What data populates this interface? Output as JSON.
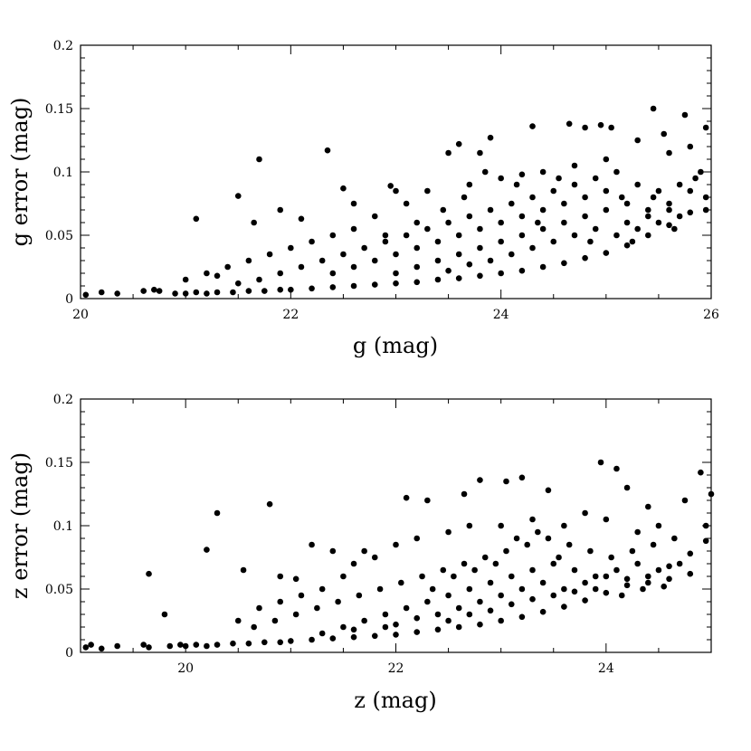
{
  "chart_data": [
    {
      "type": "scatter",
      "xlabel": "g (mag)",
      "ylabel": "g error (mag)",
      "xlim": [
        20,
        26
      ],
      "ylim": [
        0,
        0.2
      ],
      "xticks": [
        20,
        22,
        24,
        26
      ],
      "xtick_labels": [
        "20",
        "22",
        "24",
        "26"
      ],
      "yticks": [
        0,
        0.05,
        0.1,
        0.15,
        0.2
      ],
      "ytick_labels": [
        "0",
        "0.05",
        "0.1",
        "0.15",
        "0.2"
      ],
      "grid": false,
      "marker_color": "#000000",
      "points": [
        [
          20.05,
          0.003
        ],
        [
          20.2,
          0.005
        ],
        [
          20.35,
          0.004
        ],
        [
          20.6,
          0.006
        ],
        [
          20.7,
          0.007
        ],
        [
          20.75,
          0.006
        ],
        [
          20.9,
          0.004
        ],
        [
          21.0,
          0.004
        ],
        [
          21.1,
          0.005
        ],
        [
          21.2,
          0.004
        ],
        [
          21.3,
          0.005
        ],
        [
          21.45,
          0.005
        ],
        [
          21.6,
          0.006
        ],
        [
          21.75,
          0.006
        ],
        [
          21.9,
          0.007
        ],
        [
          22.0,
          0.007
        ],
        [
          22.2,
          0.008
        ],
        [
          22.4,
          0.009
        ],
        [
          22.6,
          0.01
        ],
        [
          22.8,
          0.011
        ],
        [
          23.0,
          0.012
        ],
        [
          23.2,
          0.013
        ],
        [
          23.4,
          0.015
        ],
        [
          23.6,
          0.016
        ],
        [
          23.8,
          0.018
        ],
        [
          24.0,
          0.02
        ],
        [
          24.2,
          0.022
        ],
        [
          24.4,
          0.025
        ],
        [
          24.6,
          0.028
        ],
        [
          24.8,
          0.032
        ],
        [
          25.0,
          0.036
        ],
        [
          25.2,
          0.042
        ],
        [
          25.4,
          0.05
        ],
        [
          25.6,
          0.058
        ],
        [
          25.8,
          0.068
        ],
        [
          25.95,
          0.08
        ],
        [
          21.1,
          0.063
        ],
        [
          21.5,
          0.081
        ],
        [
          21.7,
          0.11
        ],
        [
          21.65,
          0.06
        ],
        [
          21.9,
          0.07
        ],
        [
          22.1,
          0.063
        ],
        [
          22.35,
          0.117
        ],
        [
          22.5,
          0.087
        ],
        [
          22.6,
          0.075
        ],
        [
          22.95,
          0.089
        ],
        [
          23.0,
          0.085
        ],
        [
          23.5,
          0.115
        ],
        [
          23.6,
          0.122
        ],
        [
          23.8,
          0.115
        ],
        [
          23.85,
          0.1
        ],
        [
          23.9,
          0.127
        ],
        [
          24.3,
          0.136
        ],
        [
          24.65,
          0.138
        ],
        [
          24.8,
          0.135
        ],
        [
          24.95,
          0.137
        ],
        [
          25.05,
          0.135
        ],
        [
          25.45,
          0.15
        ],
        [
          25.75,
          0.145
        ],
        [
          25.95,
          0.135
        ],
        [
          25.55,
          0.13
        ],
        [
          25.3,
          0.125
        ],
        [
          25.6,
          0.115
        ],
        [
          25.8,
          0.12
        ],
        [
          25.9,
          0.1
        ],
        [
          25.0,
          0.11
        ],
        [
          24.7,
          0.105
        ],
        [
          24.4,
          0.1
        ],
        [
          24.2,
          0.098
        ],
        [
          24.0,
          0.095
        ],
        [
          23.7,
          0.09
        ],
        [
          23.3,
          0.085
        ],
        [
          23.1,
          0.075
        ],
        [
          22.8,
          0.065
        ],
        [
          22.6,
          0.055
        ],
        [
          22.4,
          0.05
        ],
        [
          22.2,
          0.045
        ],
        [
          22.0,
          0.04
        ],
        [
          21.8,
          0.035
        ],
        [
          21.6,
          0.03
        ],
        [
          21.4,
          0.025
        ],
        [
          21.2,
          0.02
        ],
        [
          21.0,
          0.015
        ],
        [
          21.3,
          0.018
        ],
        [
          21.5,
          0.012
        ],
        [
          21.7,
          0.015
        ],
        [
          21.9,
          0.02
        ],
        [
          22.1,
          0.025
        ],
        [
          22.3,
          0.03
        ],
        [
          22.5,
          0.035
        ],
        [
          22.7,
          0.04
        ],
        [
          22.9,
          0.045
        ],
        [
          23.1,
          0.05
        ],
        [
          23.3,
          0.055
        ],
        [
          23.5,
          0.06
        ],
        [
          23.7,
          0.065
        ],
        [
          23.9,
          0.07
        ],
        [
          24.1,
          0.075
        ],
        [
          24.3,
          0.08
        ],
        [
          24.5,
          0.085
        ],
        [
          24.7,
          0.09
        ],
        [
          24.9,
          0.095
        ],
        [
          25.1,
          0.1
        ],
        [
          25.3,
          0.09
        ],
        [
          25.5,
          0.085
        ],
        [
          25.7,
          0.09
        ],
        [
          22.4,
          0.02
        ],
        [
          22.6,
          0.025
        ],
        [
          22.8,
          0.03
        ],
        [
          23.0,
          0.035
        ],
        [
          23.2,
          0.04
        ],
        [
          23.4,
          0.045
        ],
        [
          23.6,
          0.05
        ],
        [
          23.8,
          0.055
        ],
        [
          24.0,
          0.06
        ],
        [
          24.2,
          0.065
        ],
        [
          24.4,
          0.07
        ],
        [
          24.6,
          0.075
        ],
        [
          24.8,
          0.08
        ],
        [
          25.0,
          0.085
        ],
        [
          25.2,
          0.075
        ],
        [
          25.4,
          0.07
        ],
        [
          25.6,
          0.075
        ],
        [
          25.8,
          0.085
        ],
        [
          23.0,
          0.02
        ],
        [
          23.2,
          0.025
        ],
        [
          23.4,
          0.03
        ],
        [
          23.6,
          0.035
        ],
        [
          23.8,
          0.04
        ],
        [
          24.0,
          0.045
        ],
        [
          24.2,
          0.05
        ],
        [
          24.4,
          0.055
        ],
        [
          24.6,
          0.06
        ],
        [
          24.8,
          0.065
        ],
        [
          25.0,
          0.07
        ],
        [
          25.2,
          0.06
        ],
        [
          25.4,
          0.065
        ],
        [
          25.6,
          0.07
        ],
        [
          23.5,
          0.022
        ],
        [
          23.7,
          0.027
        ],
        [
          23.9,
          0.03
        ],
        [
          24.1,
          0.035
        ],
        [
          24.3,
          0.04
        ],
        [
          24.5,
          0.045
        ],
        [
          24.7,
          0.05
        ],
        [
          24.9,
          0.055
        ],
        [
          25.1,
          0.05
        ],
        [
          25.3,
          0.055
        ],
        [
          25.5,
          0.06
        ],
        [
          25.7,
          0.065
        ],
        [
          22.9,
          0.05
        ],
        [
          23.2,
          0.06
        ],
        [
          23.45,
          0.07
        ],
        [
          23.65,
          0.08
        ],
        [
          24.15,
          0.09
        ],
        [
          24.55,
          0.095
        ],
        [
          25.15,
          0.08
        ],
        [
          25.45,
          0.08
        ],
        [
          25.85,
          0.095
        ],
        [
          24.35,
          0.06
        ],
        [
          24.85,
          0.045
        ],
        [
          25.25,
          0.045
        ],
        [
          25.65,
          0.055
        ],
        [
          25.95,
          0.07
        ]
      ]
    },
    {
      "type": "scatter",
      "xlabel": "z (mag)",
      "ylabel": "z error (mag)",
      "xlim": [
        19,
        25
      ],
      "ylim": [
        0,
        0.2
      ],
      "xticks": [
        20,
        22,
        24
      ],
      "xtick_labels": [
        "20",
        "22",
        "24"
      ],
      "yticks": [
        0,
        0.05,
        0.1,
        0.15,
        0.2
      ],
      "ytick_labels": [
        "0",
        "0.05",
        "0.1",
        "0.15",
        "0.2"
      ],
      "grid": false,
      "marker_color": "#000000",
      "points": [
        [
          19.05,
          0.004
        ],
        [
          19.1,
          0.006
        ],
        [
          19.2,
          0.003
        ],
        [
          19.35,
          0.005
        ],
        [
          19.6,
          0.006
        ],
        [
          19.65,
          0.004
        ],
        [
          19.85,
          0.005
        ],
        [
          19.95,
          0.006
        ],
        [
          20.0,
          0.005
        ],
        [
          20.1,
          0.006
        ],
        [
          20.2,
          0.005
        ],
        [
          20.3,
          0.006
        ],
        [
          20.45,
          0.007
        ],
        [
          20.6,
          0.007
        ],
        [
          20.75,
          0.008
        ],
        [
          20.9,
          0.008
        ],
        [
          21.0,
          0.009
        ],
        [
          21.2,
          0.01
        ],
        [
          21.4,
          0.011
        ],
        [
          21.6,
          0.012
        ],
        [
          21.8,
          0.013
        ],
        [
          22.0,
          0.014
        ],
        [
          22.2,
          0.016
        ],
        [
          22.4,
          0.018
        ],
        [
          22.6,
          0.02
        ],
        [
          22.8,
          0.022
        ],
        [
          23.0,
          0.025
        ],
        [
          23.2,
          0.028
        ],
        [
          23.4,
          0.032
        ],
        [
          23.6,
          0.036
        ],
        [
          23.8,
          0.041
        ],
        [
          24.0,
          0.047
        ],
        [
          24.2,
          0.053
        ],
        [
          24.4,
          0.06
        ],
        [
          24.6,
          0.068
        ],
        [
          24.8,
          0.078
        ],
        [
          24.95,
          0.088
        ],
        [
          19.65,
          0.062
        ],
        [
          19.8,
          0.03
        ],
        [
          20.2,
          0.081
        ],
        [
          20.3,
          0.11
        ],
        [
          20.55,
          0.065
        ],
        [
          20.8,
          0.117
        ],
        [
          20.9,
          0.06
        ],
        [
          21.05,
          0.058
        ],
        [
          21.2,
          0.085
        ],
        [
          21.4,
          0.08
        ],
        [
          21.6,
          0.07
        ],
        [
          21.8,
          0.075
        ],
        [
          22.1,
          0.122
        ],
        [
          22.3,
          0.12
        ],
        [
          22.65,
          0.125
        ],
        [
          22.8,
          0.136
        ],
        [
          23.05,
          0.135
        ],
        [
          23.2,
          0.138
        ],
        [
          23.45,
          0.128
        ],
        [
          23.95,
          0.15
        ],
        [
          24.1,
          0.145
        ],
        [
          24.2,
          0.13
        ],
        [
          24.4,
          0.115
        ],
        [
          24.75,
          0.12
        ],
        [
          24.9,
          0.142
        ],
        [
          25.0,
          0.125
        ],
        [
          24.95,
          0.1
        ],
        [
          24.5,
          0.1
        ],
        [
          24.3,
          0.095
        ],
        [
          24.0,
          0.105
        ],
        [
          23.8,
          0.11
        ],
        [
          23.6,
          0.1
        ],
        [
          23.3,
          0.105
        ],
        [
          23.0,
          0.1
        ],
        [
          22.7,
          0.1
        ],
        [
          22.5,
          0.095
        ],
        [
          22.2,
          0.09
        ],
        [
          22.0,
          0.085
        ],
        [
          21.7,
          0.08
        ],
        [
          21.5,
          0.06
        ],
        [
          21.3,
          0.05
        ],
        [
          21.1,
          0.045
        ],
        [
          20.9,
          0.04
        ],
        [
          20.7,
          0.035
        ],
        [
          20.5,
          0.025
        ],
        [
          20.65,
          0.02
        ],
        [
          20.85,
          0.025
        ],
        [
          21.05,
          0.03
        ],
        [
          21.25,
          0.035
        ],
        [
          21.45,
          0.04
        ],
        [
          21.65,
          0.045
        ],
        [
          21.85,
          0.05
        ],
        [
          22.05,
          0.055
        ],
        [
          22.25,
          0.06
        ],
        [
          22.45,
          0.065
        ],
        [
          22.65,
          0.07
        ],
        [
          22.85,
          0.075
        ],
        [
          23.05,
          0.08
        ],
        [
          23.25,
          0.085
        ],
        [
          23.45,
          0.09
        ],
        [
          23.65,
          0.085
        ],
        [
          23.85,
          0.08
        ],
        [
          24.05,
          0.075
        ],
        [
          24.25,
          0.08
        ],
        [
          24.45,
          0.085
        ],
        [
          24.65,
          0.09
        ],
        [
          21.5,
          0.02
        ],
        [
          21.7,
          0.025
        ],
        [
          21.9,
          0.03
        ],
        [
          22.1,
          0.035
        ],
        [
          22.3,
          0.04
        ],
        [
          22.5,
          0.045
        ],
        [
          22.7,
          0.05
        ],
        [
          22.9,
          0.055
        ],
        [
          23.1,
          0.06
        ],
        [
          23.3,
          0.065
        ],
        [
          23.5,
          0.07
        ],
        [
          23.7,
          0.065
        ],
        [
          23.9,
          0.06
        ],
        [
          24.1,
          0.065
        ],
        [
          24.3,
          0.07
        ],
        [
          24.5,
          0.065
        ],
        [
          24.7,
          0.07
        ],
        [
          22.0,
          0.022
        ],
        [
          22.2,
          0.027
        ],
        [
          22.4,
          0.03
        ],
        [
          22.6,
          0.035
        ],
        [
          22.8,
          0.04
        ],
        [
          23.0,
          0.045
        ],
        [
          23.2,
          0.05
        ],
        [
          23.4,
          0.055
        ],
        [
          23.6,
          0.05
        ],
        [
          23.8,
          0.055
        ],
        [
          24.0,
          0.06
        ],
        [
          24.2,
          0.058
        ],
        [
          24.4,
          0.055
        ],
        [
          24.6,
          0.058
        ],
        [
          22.5,
          0.025
        ],
        [
          22.7,
          0.03
        ],
        [
          22.9,
          0.033
        ],
        [
          23.1,
          0.038
        ],
        [
          23.3,
          0.042
        ],
        [
          23.5,
          0.045
        ],
        [
          23.7,
          0.048
        ],
        [
          23.9,
          0.05
        ],
        [
          24.15,
          0.045
        ],
        [
          24.35,
          0.05
        ],
        [
          24.55,
          0.052
        ],
        [
          24.8,
          0.062
        ],
        [
          21.3,
          0.015
        ],
        [
          21.6,
          0.018
        ],
        [
          21.9,
          0.02
        ],
        [
          22.35,
          0.05
        ],
        [
          22.55,
          0.06
        ],
        [
          22.75,
          0.065
        ],
        [
          22.95,
          0.07
        ],
        [
          23.15,
          0.09
        ],
        [
          23.35,
          0.095
        ],
        [
          23.55,
          0.075
        ]
      ]
    }
  ]
}
